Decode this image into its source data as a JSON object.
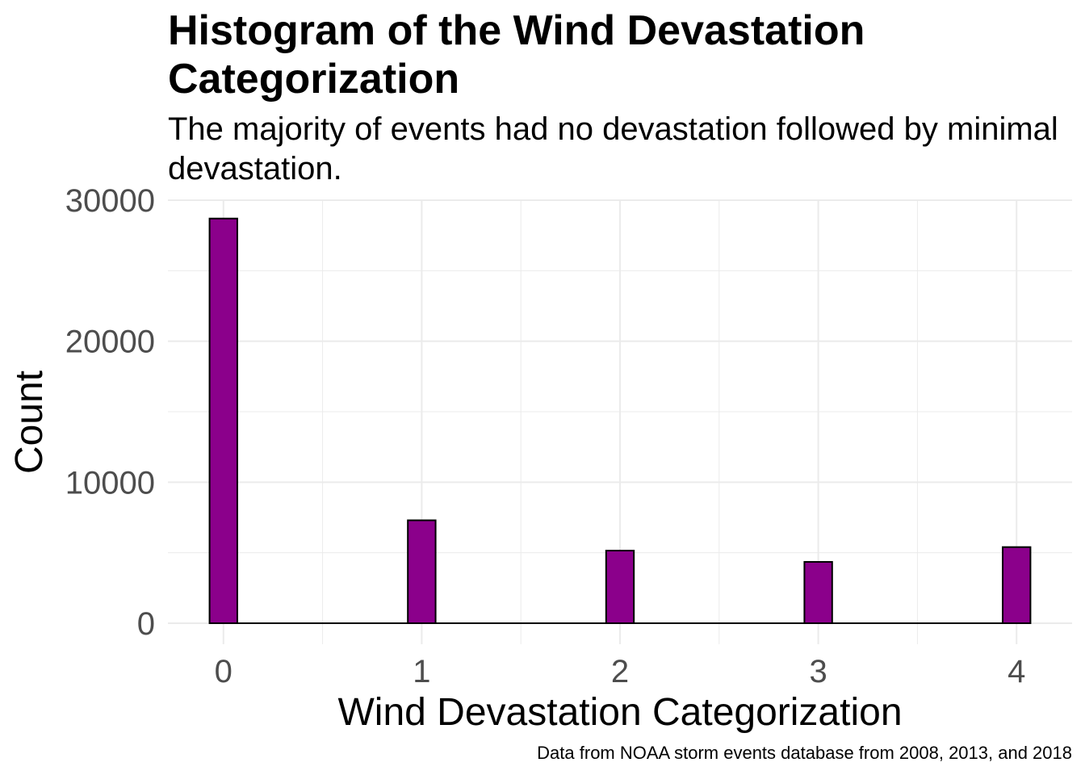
{
  "chart_data": {
    "type": "bar",
    "title": "Histogram of the Wind Devastation Categorization",
    "subtitle": "The majority of events had no devastation followed by minimal devastation.",
    "xlabel": "Wind Devastation Categorization",
    "ylabel": "Count",
    "caption": "Data from NOAA storm events database from 2008, 2013, and 2018",
    "categories": [
      "0",
      "1",
      "2",
      "3",
      "4"
    ],
    "x": [
      0,
      1,
      2,
      3,
      4
    ],
    "values": [
      28700,
      7300,
      5150,
      4350,
      5400
    ],
    "xticks": [
      "0",
      "1",
      "2",
      "3",
      "4"
    ],
    "yticks": [
      "0",
      "10000",
      "20000",
      "30000"
    ],
    "ylim": [
      0,
      30000
    ],
    "xlim": [
      -0.28,
      4.28
    ],
    "grid": true,
    "legend": "none",
    "colors": {
      "fill": "#8B008B",
      "outline": "#000000",
      "grid": "#ebebeb"
    }
  }
}
